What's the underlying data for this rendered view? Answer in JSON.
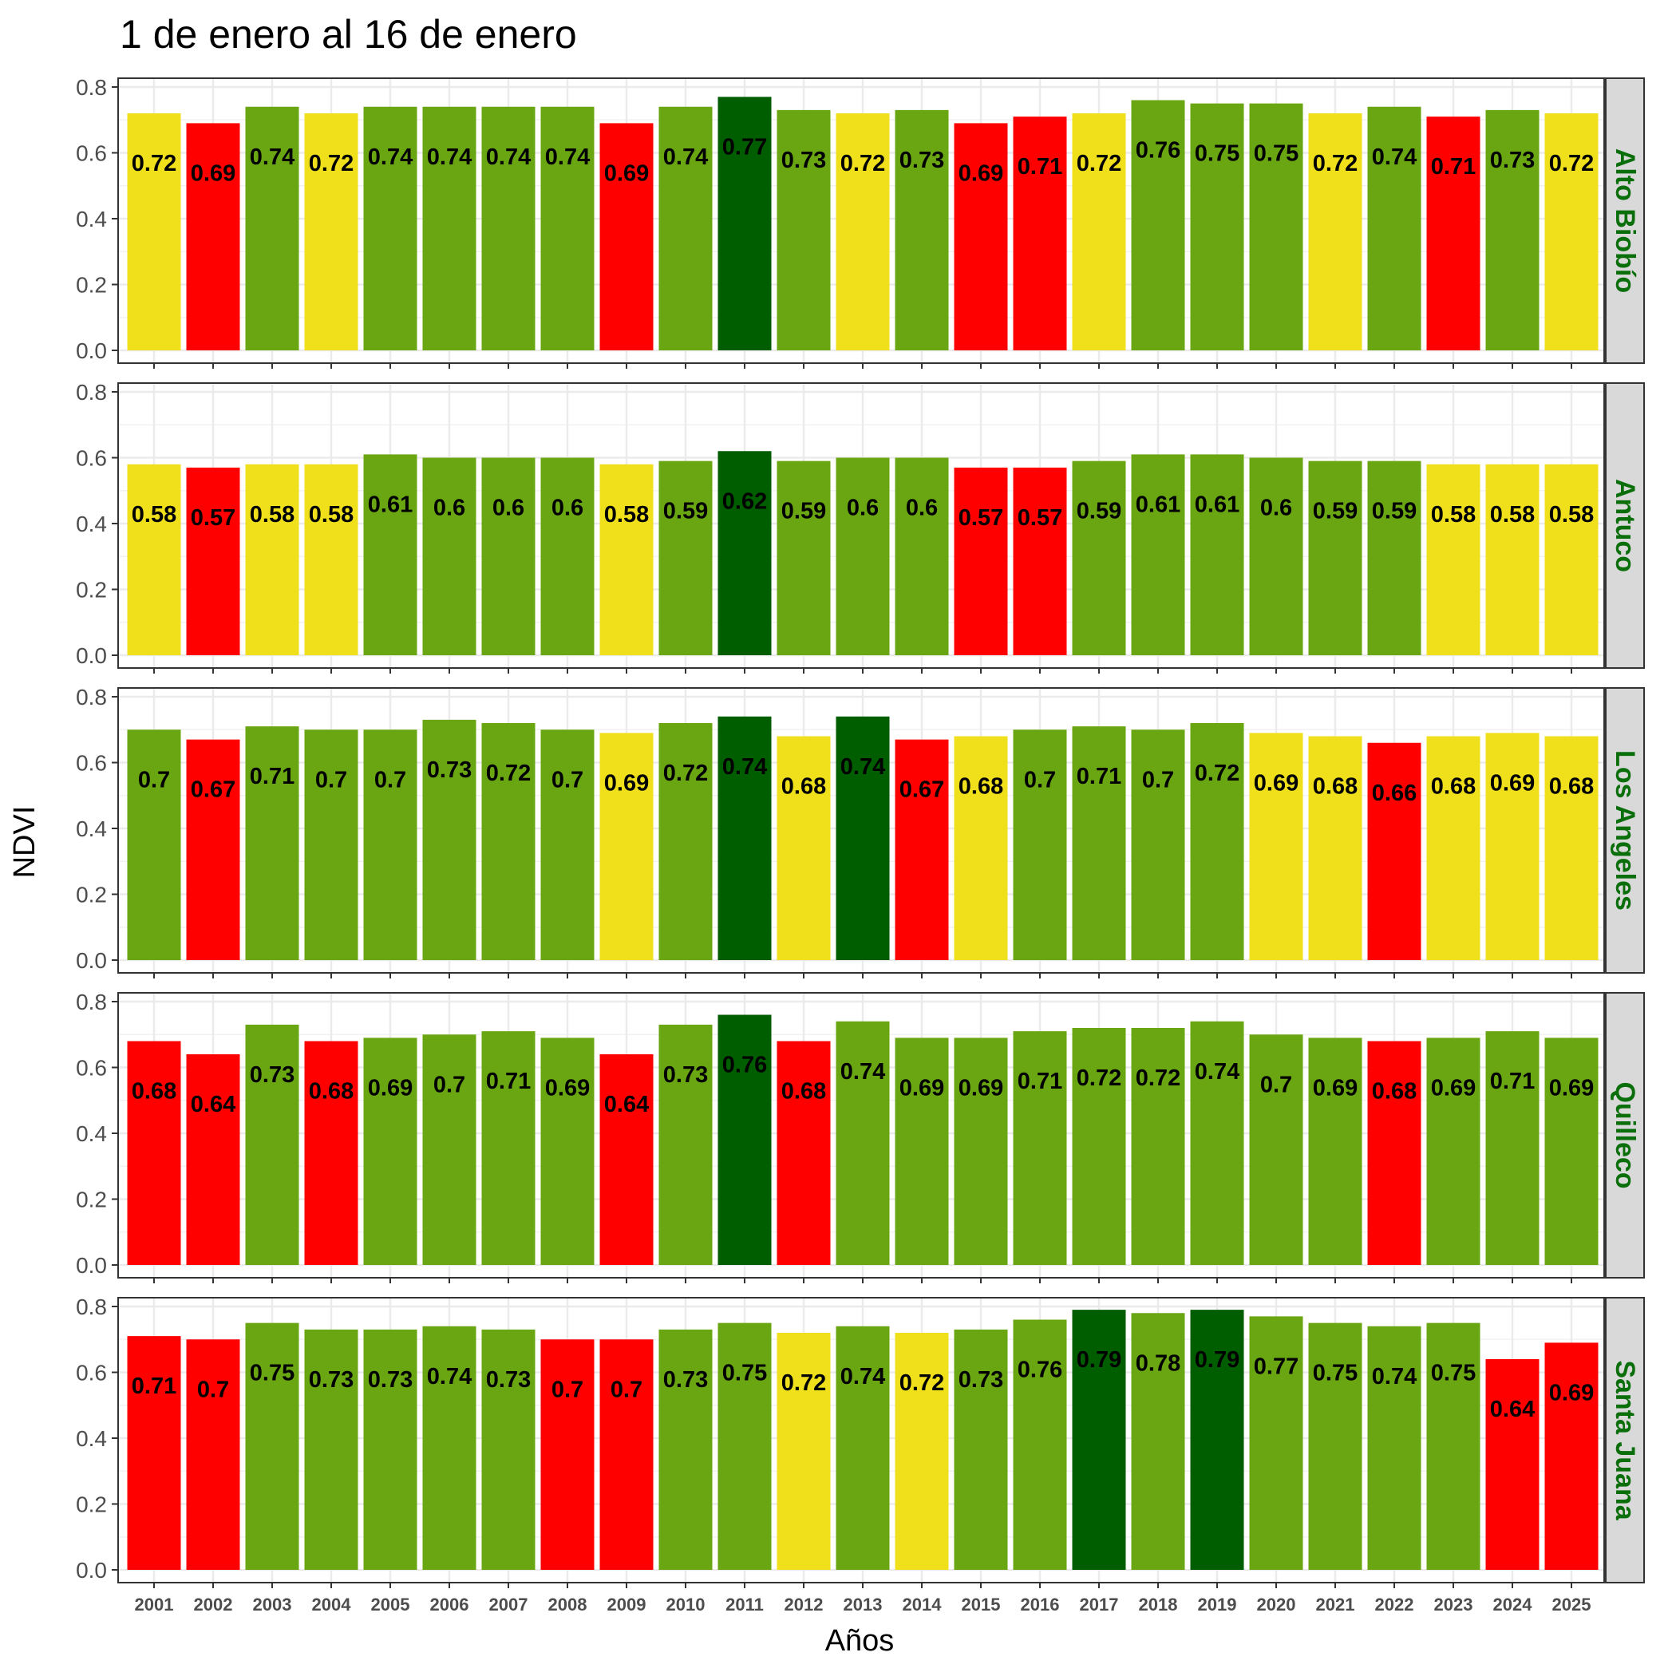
{
  "chart_data": {
    "type": "bar",
    "title": "1 de enero al 16 de enero",
    "xlabel": "Años",
    "ylabel": "NDVI",
    "ylim": [
      0,
      0.8
    ],
    "yticks": [
      "0.0",
      "0.2",
      "0.4",
      "0.6",
      "0.8"
    ],
    "grid": true,
    "legend": "none",
    "categories": [
      "2001",
      "2002",
      "2003",
      "2004",
      "2005",
      "2006",
      "2007",
      "2008",
      "2009",
      "2010",
      "2011",
      "2012",
      "2013",
      "2014",
      "2015",
      "2016",
      "2017",
      "2018",
      "2019",
      "2020",
      "2021",
      "2022",
      "2023",
      "2024",
      "2025"
    ],
    "colors": {
      "red": "#ff0000",
      "yellow": "#f0e01c",
      "green": "#6aa612",
      "darkgreen": "#005e00",
      "strip_bg": "#d9d9d9",
      "strip_text": "#0a6e0a"
    },
    "panels": [
      {
        "name": "Alto Biobío",
        "values": [
          0.72,
          0.69,
          0.74,
          0.72,
          0.74,
          0.74,
          0.74,
          0.74,
          0.69,
          0.74,
          0.77,
          0.73,
          0.72,
          0.73,
          0.69,
          0.71,
          0.72,
          0.76,
          0.75,
          0.75,
          0.72,
          0.74,
          0.71,
          0.73,
          0.72
        ],
        "labels": [
          "0.72",
          "0.69",
          "0.74",
          "0.72",
          "0.74",
          "0.74",
          "0.74",
          "0.74",
          "0.69",
          "0.74",
          "0.77",
          "0.73",
          "0.72",
          "0.73",
          "0.69",
          "0.71",
          "0.72",
          "0.76",
          "0.75",
          "0.75",
          "0.72",
          "0.74",
          "0.71",
          "0.73",
          "0.72"
        ],
        "classes": [
          "yellow",
          "red",
          "green",
          "yellow",
          "green",
          "green",
          "green",
          "green",
          "red",
          "green",
          "darkgreen",
          "green",
          "yellow",
          "green",
          "red",
          "red",
          "yellow",
          "green",
          "green",
          "green",
          "yellow",
          "green",
          "red",
          "green",
          "yellow"
        ]
      },
      {
        "name": "Antuco",
        "values": [
          0.58,
          0.57,
          0.58,
          0.58,
          0.61,
          0.6,
          0.6,
          0.6,
          0.58,
          0.59,
          0.62,
          0.59,
          0.6,
          0.6,
          0.57,
          0.57,
          0.59,
          0.61,
          0.61,
          0.6,
          0.59,
          0.59,
          0.58,
          0.58,
          0.58
        ],
        "labels": [
          "0.58",
          "0.57",
          "0.58",
          "0.58",
          "0.61",
          "0.6",
          "0.6",
          "0.6",
          "0.58",
          "0.59",
          "0.62",
          "0.59",
          "0.6",
          "0.6",
          "0.57",
          "0.57",
          "0.59",
          "0.61",
          "0.61",
          "0.6",
          "0.59",
          "0.59",
          "0.58",
          "0.58",
          "0.58"
        ],
        "classes": [
          "yellow",
          "red",
          "yellow",
          "yellow",
          "green",
          "green",
          "green",
          "green",
          "yellow",
          "green",
          "darkgreen",
          "green",
          "green",
          "green",
          "red",
          "red",
          "green",
          "green",
          "green",
          "green",
          "green",
          "green",
          "yellow",
          "yellow",
          "yellow"
        ]
      },
      {
        "name": "Los Angeles",
        "values": [
          0.7,
          0.67,
          0.71,
          0.7,
          0.7,
          0.73,
          0.72,
          0.7,
          0.69,
          0.72,
          0.74,
          0.68,
          0.74,
          0.67,
          0.68,
          0.7,
          0.71,
          0.7,
          0.72,
          0.69,
          0.68,
          0.66,
          0.68,
          0.69,
          0.68
        ],
        "labels": [
          "0.7",
          "0.67",
          "0.71",
          "0.7",
          "0.7",
          "0.73",
          "0.72",
          "0.7",
          "0.69",
          "0.72",
          "0.74",
          "0.68",
          "0.74",
          "0.67",
          "0.68",
          "0.7",
          "0.71",
          "0.7",
          "0.72",
          "0.69",
          "0.68",
          "0.66",
          "0.68",
          "0.69",
          "0.68"
        ],
        "classes": [
          "green",
          "red",
          "green",
          "green",
          "green",
          "green",
          "green",
          "green",
          "yellow",
          "green",
          "darkgreen",
          "yellow",
          "darkgreen",
          "red",
          "yellow",
          "green",
          "green",
          "green",
          "green",
          "yellow",
          "yellow",
          "red",
          "yellow",
          "yellow",
          "yellow"
        ]
      },
      {
        "name": "Quilleco",
        "values": [
          0.68,
          0.64,
          0.73,
          0.68,
          0.69,
          0.7,
          0.71,
          0.69,
          0.64,
          0.73,
          0.76,
          0.68,
          0.74,
          0.69,
          0.69,
          0.71,
          0.72,
          0.72,
          0.74,
          0.7,
          0.69,
          0.68,
          0.69,
          0.71,
          0.69
        ],
        "labels": [
          "0.68",
          "0.64",
          "0.73",
          "0.68",
          "0.69",
          "0.7",
          "0.71",
          "0.69",
          "0.64",
          "0.73",
          "0.76",
          "0.68",
          "0.74",
          "0.69",
          "0.69",
          "0.71",
          "0.72",
          "0.72",
          "0.74",
          "0.7",
          "0.69",
          "0.68",
          "0.69",
          "0.71",
          "0.69"
        ],
        "classes": [
          "red",
          "red",
          "green",
          "red",
          "green",
          "green",
          "green",
          "green",
          "red",
          "green",
          "darkgreen",
          "red",
          "green",
          "green",
          "green",
          "green",
          "green",
          "green",
          "green",
          "green",
          "green",
          "red",
          "green",
          "green",
          "green"
        ]
      },
      {
        "name": "Santa Juana",
        "values": [
          0.71,
          0.7,
          0.75,
          0.73,
          0.73,
          0.74,
          0.73,
          0.7,
          0.7,
          0.73,
          0.75,
          0.72,
          0.74,
          0.72,
          0.73,
          0.76,
          0.79,
          0.78,
          0.79,
          0.77,
          0.75,
          0.74,
          0.75,
          0.64,
          0.69
        ],
        "labels": [
          "0.71",
          "0.7",
          "0.75",
          "0.73",
          "0.73",
          "0.74",
          "0.73",
          "0.7",
          "0.7",
          "0.73",
          "0.75",
          "0.72",
          "0.74",
          "0.72",
          "0.73",
          "0.76",
          "0.79",
          "0.78",
          "0.79",
          "0.77",
          "0.75",
          "0.74",
          "0.75",
          "0.64",
          "0.69"
        ],
        "classes": [
          "red",
          "red",
          "green",
          "green",
          "green",
          "green",
          "green",
          "red",
          "red",
          "green",
          "green",
          "yellow",
          "green",
          "yellow",
          "green",
          "green",
          "darkgreen",
          "green",
          "darkgreen",
          "green",
          "green",
          "green",
          "green",
          "red",
          "red"
        ]
      }
    ]
  }
}
